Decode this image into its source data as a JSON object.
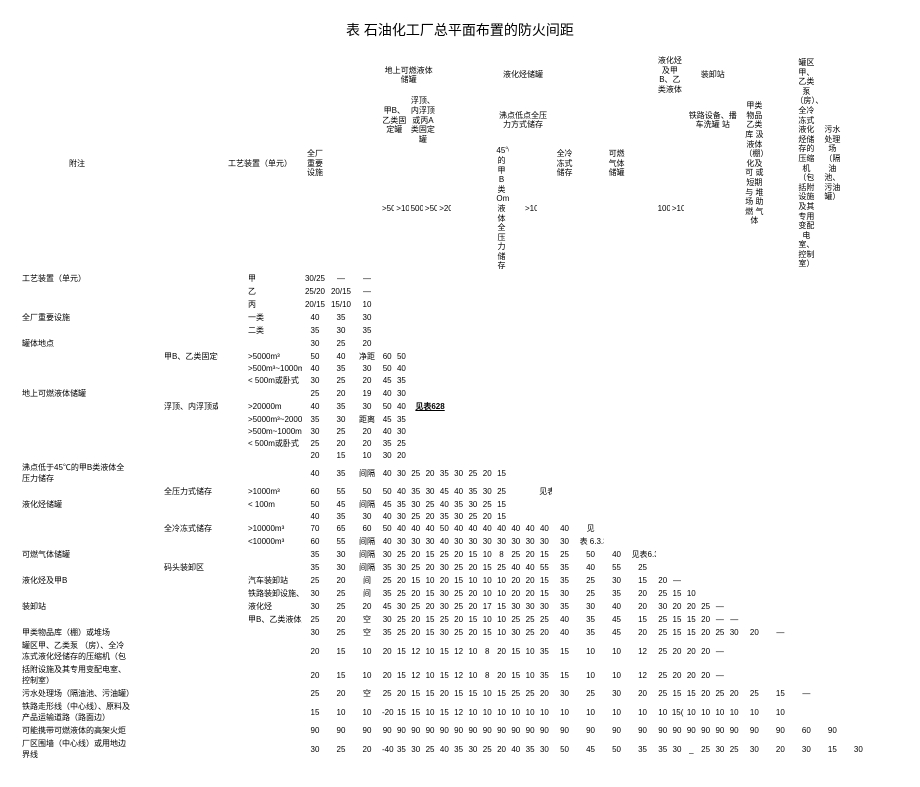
{
  "title": "表    石油化工厂总平面布置的防火间距",
  "headers": {
    "h1": "工艺装置（单元）",
    "h2": "全厂重要设施",
    "h3": "甲B、乙类固定罐",
    "h4": "地上可燃液体储罐",
    "h5": "浮顶、内浮顶或丙A类固定罐",
    "h6": "液化烃储罐",
    "h7": "沸点低点全压力方式储存",
    "h8": "全冷冻式储存",
    "h9": "可燃气体储罐",
    "h10": "液化烃及甲B、乙类液体",
    "h11": "装卸站",
    "h12": "罐区甲、乙类泵（房）、全冷冻式液化烃储存的压缩机（包括附设施及其专用变配电室、控制室）",
    "h13": "甲类 物品 乙类 库 汲液体（棚）化及可 或 短期与 堆场 助燃 气体",
    "h14": "污水 处理场（隔油池、污油罐）",
    "sub1": ">5000~1",
    "sub2": ">1000m³~5000m³",
    "sub3": "500m",
    "sub4": ">500m",
    "sub5": ">2000~m³",
    "sub6": "45℃的甲B类Om液体全压力储存",
    "sub7": ">1000m³",
    "sub8": "100m>10000I)",
    "sub9": ">10000m",
    "sub10": "铁路设备、播车洗罐 站",
    "sub11": "汽车装卸站"
  },
  "rowLabels": {
    "r1": "工艺装置（单元）",
    "r1a": "甲",
    "r1b": "乙",
    "r1c": "丙",
    "r2": "全厂重要设施",
    "r2a": "一类",
    "r2b": "二类",
    "r3": "罐体地点",
    "r4": "地上可燃液体储罐",
    "r4a": "甲B、乙类固定罐",
    "r4a1": ">5000m³",
    "r4a2": ">500m³~1000m³",
    "r4a3": "< 500m或卧式",
    "r4b": "浮顶、内浮顶或丙",
    "r4b1": ">20000m",
    "r4b2": ">5000m³~20000m³",
    "r4b3": ">500m~1000m",
    "r4b4": "< 500m或卧式",
    "r5": "沸点低于45℃的甲B类液体全压力储存",
    "r6": "液化烃储罐",
    "r6a": "全压力式储存",
    "r6a1": ">1000m³",
    "r6a2": "< 100m",
    "r6b": "全冷冻式储存",
    "r6b1": ">10000m³",
    "r6b2": "<10000m³",
    "r7": "可燃气体储罐",
    "r8": "码头装卸区",
    "r9": "液化烃及甲B",
    "r9a": "汽车装卸站",
    "r9b": "铁路装卸设施、槽车洗罐罐",
    "r10": "装卸站",
    "r10a": "液化烃",
    "r10b": "甲B、乙类液体及可燃与助燃气体",
    "r11": "甲类物品库（棚）或堆场",
    "r12": "罐区甲、乙类泵    （房）、全冷冻式液化烃储存的压缩机（包",
    "r13": "括附设施及其专用变配电室、控制室）",
    "r14": "污水处理场（隔油池、污油罐）",
    "r15": "铁路走形线（中心线）、原料及产品运输道路（路面边）",
    "r16": "可能携带可燃液体的高架火炬",
    "r17": "厂区围墙（中心线）或用地边界线",
    "note": "附注"
  },
  "ref628": "见表628",
  "ref633": "见表6.3.3",
  "ref633b": "表 6.3.3",
  "ref633c": "见表6.3.3",
  "data": {
    "r1a": [
      "30/25",
      "—",
      "—"
    ],
    "r1b": [
      "25/20",
      "20/15",
      "—"
    ],
    "r1c": [
      "20/15",
      "15/10",
      "10"
    ],
    "r2a": [
      "40",
      "35",
      "30"
    ],
    "r2b": [
      "35",
      "30",
      "35"
    ],
    "r3": [
      "30",
      "25",
      "20"
    ],
    "r4a1": [
      "50",
      "40",
      "净距",
      "60",
      "50"
    ],
    "r4a2": [
      "40",
      "35",
      "30",
      "50",
      "40"
    ],
    "r4a3": [
      "30",
      "25",
      "20",
      "45",
      "35"
    ],
    "r4a4": [
      "25",
      "20",
      "19",
      "40",
      "30"
    ],
    "r4b1": [
      "40",
      "35",
      "30",
      "50",
      "40"
    ],
    "r4b2": [
      "35",
      "30",
      "距离",
      "45",
      "35"
    ],
    "r4b3": [
      "30",
      "25",
      "20",
      "40",
      "30"
    ],
    "r4b4": [
      "25",
      "20",
      "20",
      "35",
      "25"
    ],
    "r4b5": [
      "20",
      "15",
      "10",
      "30",
      "20"
    ],
    "r5": [
      "40",
      "35",
      "间隔",
      "40",
      "30",
      "25",
      "20",
      "35",
      "30",
      "25",
      "20",
      "15"
    ],
    "r6a1": [
      "60",
      "55",
      "50",
      "50",
      "40",
      "35",
      "30",
      "45",
      "40",
      "35",
      "30",
      "25"
    ],
    "r6a2": [
      "50",
      "45",
      "间隔",
      "45",
      "35",
      "30",
      "25",
      "40",
      "35",
      "30",
      "25",
      "15"
    ],
    "r6a3": [
      "40",
      "35",
      "30",
      "40",
      "30",
      "25",
      "20",
      "35",
      "30",
      "25",
      "20",
      "15"
    ],
    "r6b1": [
      "70",
      "65",
      "60",
      "50",
      "40",
      "40",
      "40",
      "50",
      "40",
      "40",
      "40",
      "40",
      "40",
      "40",
      "40",
      "40",
      "见"
    ],
    "r6b2": [
      "60",
      "55",
      "间隔",
      "40",
      "30",
      "30",
      "30",
      "40",
      "30",
      "30",
      "30",
      "30",
      "30",
      "30",
      "30",
      "30",
      "表 6.3.3"
    ],
    "r7": [
      "35",
      "30",
      "间隔",
      "30",
      "25",
      "20",
      "15",
      "25",
      "20",
      "15",
      "10",
      "8",
      "25",
      "20",
      "15",
      "25",
      "50",
      "40",
      "见表6.3.3"
    ],
    "r8": [
      "35",
      "30",
      "间隔",
      "35",
      "30",
      "25",
      "20",
      "30",
      "25",
      "20",
      "15",
      "25",
      "40",
      "40",
      "55",
      "35",
      "40",
      "55",
      "25"
    ],
    "r9a": [
      "25",
      "20",
      "间",
      "25",
      "20",
      "15",
      "10",
      "20",
      "15",
      "10",
      "10",
      "10",
      "20",
      "20",
      "15",
      "35",
      "25",
      "30",
      "15",
      "20",
      "—"
    ],
    "r9b": [
      "30",
      "25",
      "间",
      "35",
      "25",
      "20",
      "15",
      "30",
      "25",
      "20",
      "10",
      "10",
      "20",
      "20",
      "15",
      "30",
      "25",
      "35",
      "20",
      "25",
      "15",
      "10"
    ],
    "r10a": [
      "30",
      "25",
      "20",
      "45",
      "30",
      "25",
      "20",
      "30",
      "25",
      "20",
      "17",
      "15",
      "30",
      "30",
      "30",
      "35",
      "30",
      "40",
      "20",
      "30",
      "20",
      "20",
      "25",
      "—"
    ],
    "r10b": [
      "25",
      "20",
      "空",
      "30",
      "25",
      "20",
      "15",
      "25",
      "20",
      "15",
      "10",
      "10",
      "25",
      "25",
      "25",
      "40",
      "35",
      "45",
      "15",
      "25",
      "15",
      "15",
      "20",
      "—",
      "—"
    ],
    "r11": [
      "30",
      "25",
      "空",
      "35",
      "25",
      "20",
      "15",
      "30",
      "25",
      "20",
      "15",
      "10",
      "30",
      "25",
      "20",
      "40",
      "35",
      "45",
      "20",
      "25",
      "15",
      "15",
      "20",
      "25",
      "30",
      "20",
      "—"
    ],
    "r13": [
      "20",
      "15",
      "10",
      "20",
      "15",
      "12",
      "10",
      "15",
      "12",
      "10",
      "8",
      "20",
      "15",
      "10",
      "35",
      "15",
      "10",
      "10",
      "12",
      "25",
      "20",
      "20",
      "20",
      "—"
    ],
    "r14": [
      "25",
      "20",
      "空",
      "25",
      "20",
      "15",
      "15",
      "20",
      "15",
      "15",
      "10",
      "15",
      "25",
      "25",
      "20",
      "30",
      "25",
      "30",
      "20",
      "25",
      "15",
      "15",
      "20",
      "25",
      "20",
      "25",
      "15",
      "—"
    ],
    "r15": [
      "15",
      "10",
      "10",
      "-20",
      "15",
      "15",
      "10",
      "15",
      "12",
      "10",
      "10",
      "10",
      "10",
      "10",
      "10",
      "10",
      "10",
      "10",
      "10",
      "10",
      "15(10)",
      "10",
      "10",
      "10",
      "10",
      "10",
      "10"
    ],
    "r16": [
      "90",
      "90",
      "90",
      "90",
      "90",
      "90",
      "90",
      "90",
      "90",
      "90",
      "90",
      "90",
      "90",
      "90",
      "90",
      "90",
      "90",
      "90",
      "90",
      "90",
      "90",
      "90",
      "90",
      "90",
      "90",
      "90",
      "90",
      "60",
      "90"
    ],
    "r17": [
      "30",
      "25",
      "20",
      "-40",
      "35",
      "30",
      "25",
      "40",
      "35",
      "30",
      "25",
      "20",
      "40",
      "35",
      "30",
      "50",
      "45",
      "50",
      "35",
      "35",
      "30",
      "_",
      "25",
      "30",
      "25",
      "30",
      "20",
      "30",
      "15",
      "30"
    ]
  }
}
